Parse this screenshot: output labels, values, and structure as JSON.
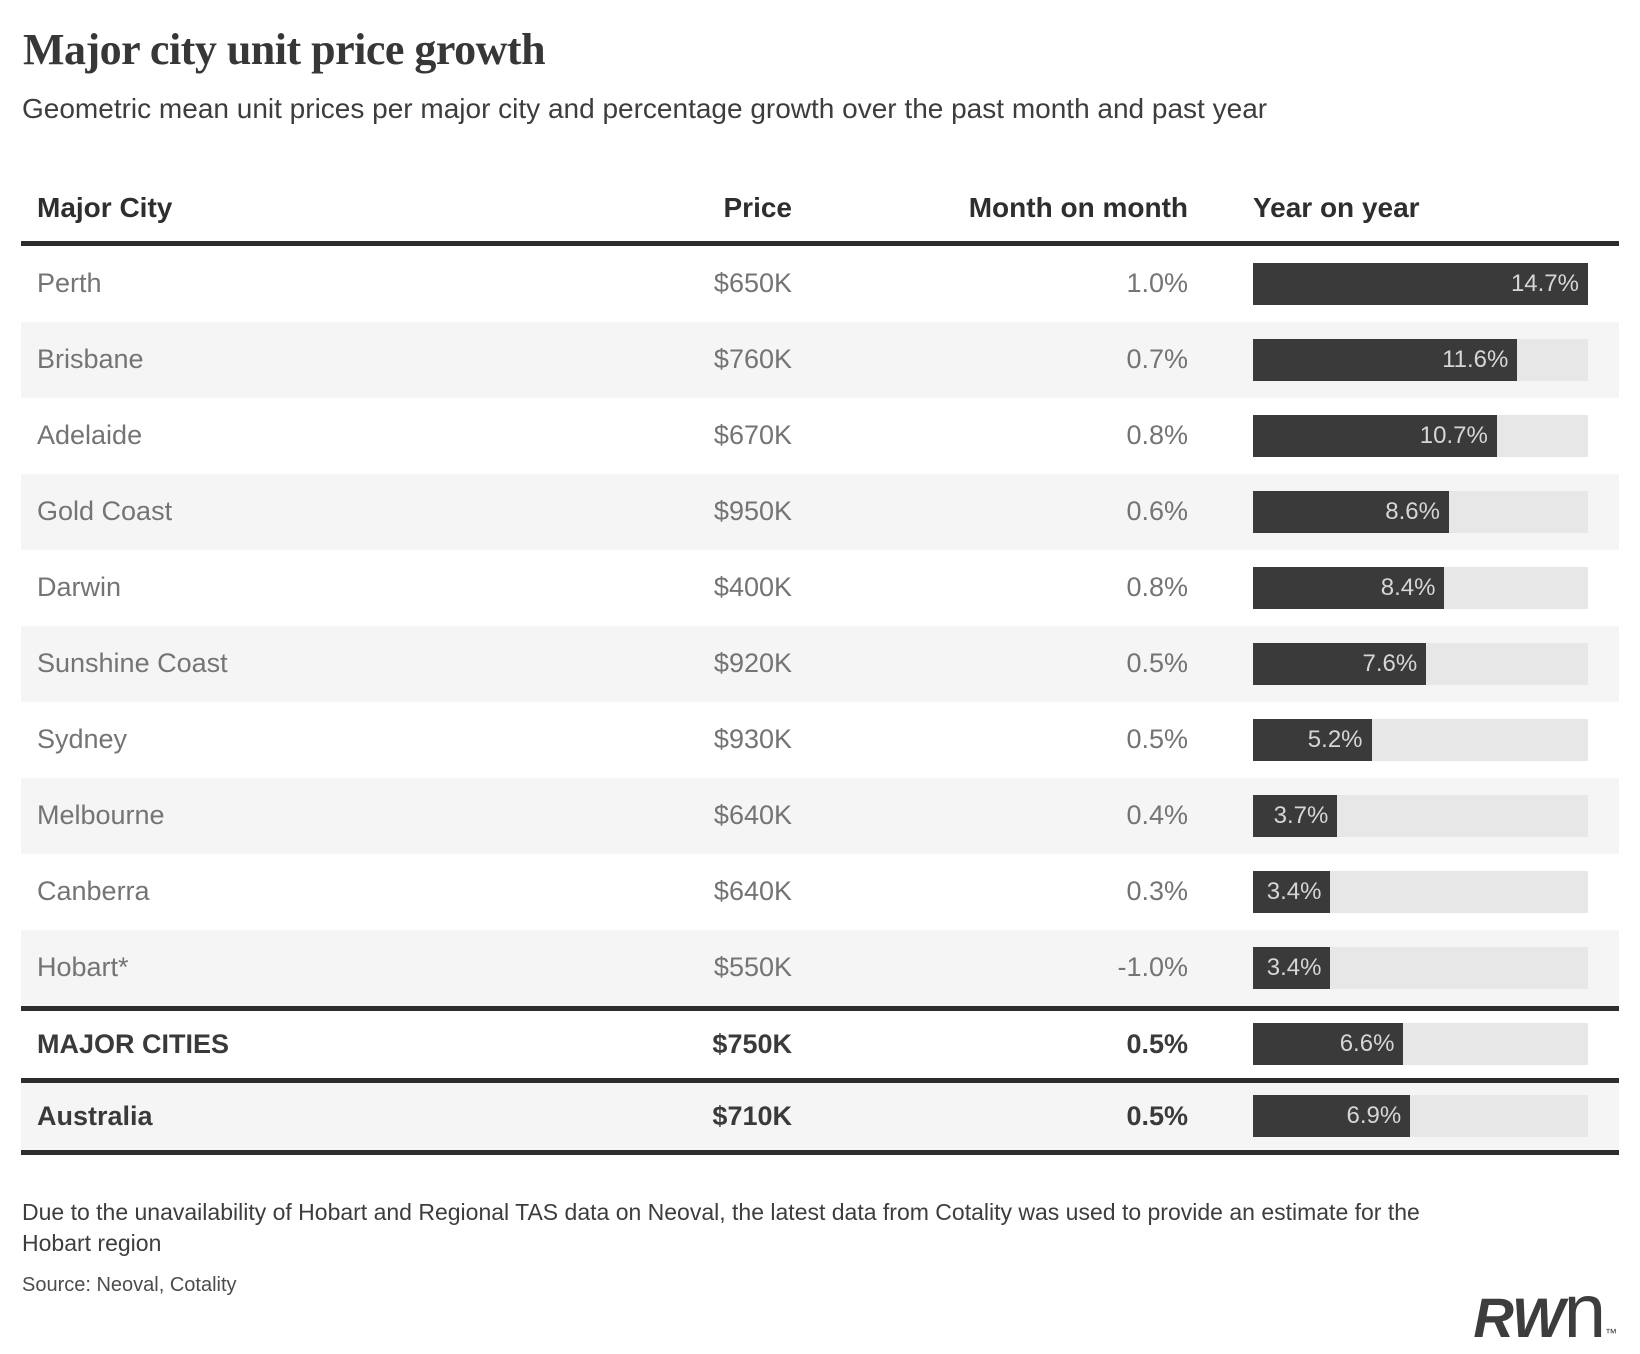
{
  "title": "Major city unit price growth",
  "subtitle": "Geometric mean unit prices per major city and percentage growth over the past month and past year",
  "columns": [
    "Major City",
    "Price",
    "Month on month",
    "Year on year"
  ],
  "chart_data": {
    "type": "bar",
    "orientation": "horizontal",
    "bar_column": "Year on year",
    "x_max": 14.7,
    "rows": [
      {
        "city": "Perth",
        "price": "$650K",
        "mom": "1.0%",
        "yoy": 14.7,
        "yoy_label": "14.7%",
        "bold": false,
        "separator_above": false
      },
      {
        "city": "Brisbane",
        "price": "$760K",
        "mom": "0.7%",
        "yoy": 11.6,
        "yoy_label": "11.6%",
        "bold": false,
        "separator_above": false
      },
      {
        "city": "Adelaide",
        "price": "$670K",
        "mom": "0.8%",
        "yoy": 10.7,
        "yoy_label": "10.7%",
        "bold": false,
        "separator_above": false
      },
      {
        "city": "Gold Coast",
        "price": "$950K",
        "mom": "0.6%",
        "yoy": 8.6,
        "yoy_label": "8.6%",
        "bold": false,
        "separator_above": false
      },
      {
        "city": "Darwin",
        "price": "$400K",
        "mom": "0.8%",
        "yoy": 8.4,
        "yoy_label": "8.4%",
        "bold": false,
        "separator_above": false
      },
      {
        "city": "Sunshine Coast",
        "price": "$920K",
        "mom": "0.5%",
        "yoy": 7.6,
        "yoy_label": "7.6%",
        "bold": false,
        "separator_above": false
      },
      {
        "city": "Sydney",
        "price": "$930K",
        "mom": "0.5%",
        "yoy": 5.2,
        "yoy_label": "5.2%",
        "bold": false,
        "separator_above": false
      },
      {
        "city": "Melbourne",
        "price": "$640K",
        "mom": "0.4%",
        "yoy": 3.7,
        "yoy_label": "3.7%",
        "bold": false,
        "separator_above": false
      },
      {
        "city": "Canberra",
        "price": "$640K",
        "mom": "0.3%",
        "yoy": 3.4,
        "yoy_label": "3.4%",
        "bold": false,
        "separator_above": false
      },
      {
        "city": "Hobart*",
        "price": "$550K",
        "mom": "-1.0%",
        "yoy": 3.4,
        "yoy_label": "3.4%",
        "bold": false,
        "separator_above": false
      },
      {
        "city": "MAJOR CITIES",
        "price": "$750K",
        "mom": "0.5%",
        "yoy": 6.6,
        "yoy_label": "6.6%",
        "bold": true,
        "separator_above": true
      },
      {
        "city": "Australia",
        "price": "$710K",
        "mom": "0.5%",
        "yoy": 6.9,
        "yoy_label": "6.9%",
        "bold": true,
        "separator_above": true
      }
    ]
  },
  "footnote_lines": [
    "Due to the unavailability of Hobart and Regional TAS data on Neoval, the latest data from Cotality was used to provide an estimate for the",
    "Hobart region"
  ],
  "source": "Source: Neoval, Cotality",
  "logo": {
    "rw": "RW",
    "n": "n",
    "tm": "™"
  },
  "colors": {
    "bar": "#3a3a3a",
    "bar_track": "#e7e7e7",
    "row_alt": "#f5f5f5",
    "rule": "#2d2d2d",
    "bar_label": "#d6d6d6"
  }
}
